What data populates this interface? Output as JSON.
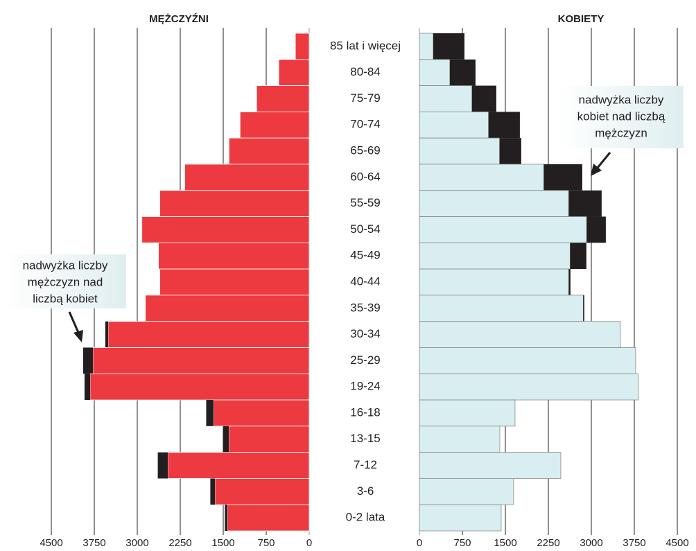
{
  "chart_data": [
    {
      "type": "bar",
      "title": "MĘŻCZYŹNI",
      "orientation": "horizontal",
      "inverted": true,
      "color": "#ed3a40",
      "excess_color": "#231f20",
      "categories": [
        "85 lat i więcej",
        "80-84",
        "75-79",
        "70-74",
        "65-69",
        "60-64",
        "55-59",
        "50-54",
        "45-49",
        "40-44",
        "35-39",
        "30-34",
        "25-29",
        "19-24",
        "16-18",
        "13-15",
        "7-12",
        "3-6",
        "0-2 lata"
      ],
      "values": [
        241,
        531,
        917,
        1206,
        1399,
        2171,
        2606,
        2919,
        2630,
        2606,
        2859,
        3558,
        3944,
        3920,
        1797,
        1496,
        2642,
        1725,
        1472
      ],
      "xlim": [
        0,
        4500
      ],
      "xticks": [
        0,
        750,
        1500,
        2250,
        3000,
        3750,
        4500
      ],
      "grid": true,
      "annotation": [
        "nadwyżka liczby",
        "mężczyzn nad",
        "liczbą kobiet"
      ]
    },
    {
      "type": "bar",
      "title": "KOBIETY",
      "orientation": "horizontal",
      "inverted": false,
      "color": "#d9eef0",
      "excess_color": "#231f20",
      "values": [
        786,
        979,
        1342,
        1753,
        1777,
        2842,
        3180,
        3253,
        2914,
        2636,
        2878,
        3507,
        3773,
        3821,
        1669,
        1403,
        2467,
        1644,
        1427
      ],
      "xlim": [
        0,
        4500
      ],
      "xticks": [
        0,
        750,
        1500,
        2250,
        3000,
        3750,
        4500
      ],
      "grid": true,
      "annotation": [
        "nadwyżka liczby",
        "kobiet nad liczbą",
        "mężczyzn"
      ]
    }
  ]
}
